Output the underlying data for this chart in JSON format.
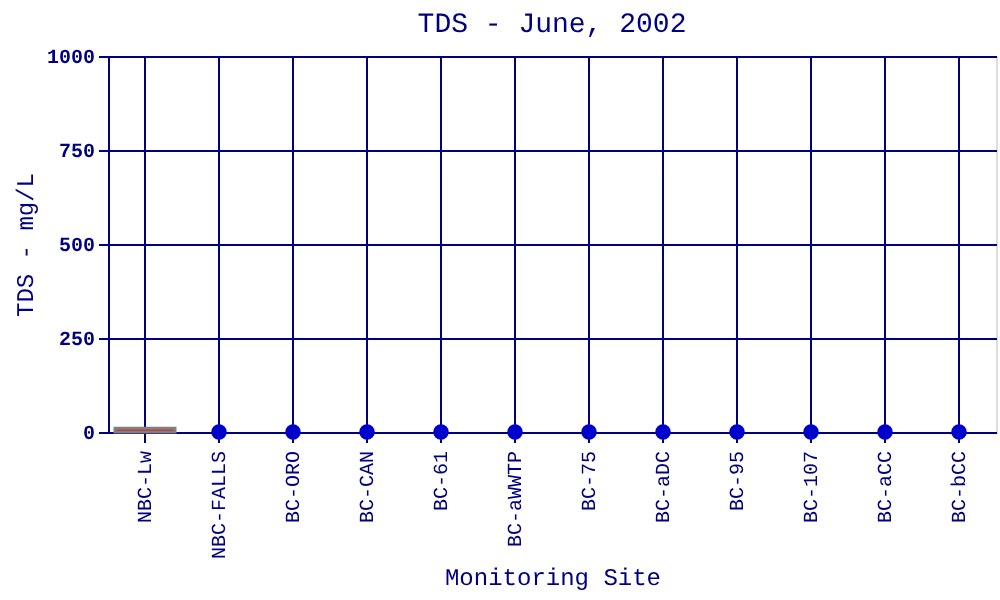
{
  "chart_data": {
    "type": "bar",
    "title": "TDS - June, 2002",
    "xlabel": "Monitoring Site",
    "ylabel": "TDS - mg/L",
    "categories": [
      "NBC-Lw",
      "NBC-FALLS",
      "BC-ORO",
      "BC-CAN",
      "BC-61",
      "BC-aWWTP",
      "BC-75",
      "BC-aDC",
      "BC-95",
      "BC-107",
      "BC-aCC",
      "BC-bCC"
    ],
    "series": [
      {
        "color": "#ff0000",
        "values": [
          10,
          null,
          null,
          null,
          null,
          null,
          null,
          null,
          null,
          null,
          null,
          null
        ]
      },
      {
        "type": "scatter",
        "color": "#0000cc",
        "values": [
          null,
          0,
          0,
          0,
          0,
          0,
          0,
          0,
          0,
          0,
          0,
          0
        ]
      }
    ],
    "ylim": [
      0,
      1000
    ],
    "yticks": [
      0,
      250,
      500,
      750,
      1000
    ],
    "grid": true,
    "marker": "circle"
  }
}
